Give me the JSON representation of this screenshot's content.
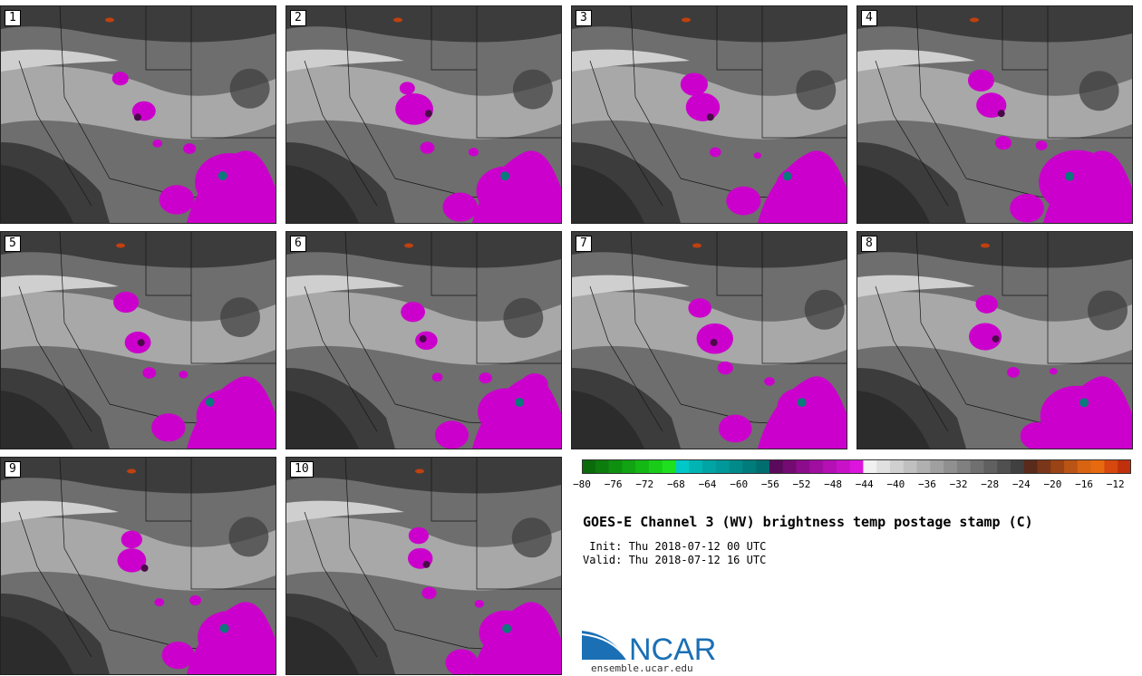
{
  "panels": [
    {
      "label": "1"
    },
    {
      "label": "2"
    },
    {
      "label": "3"
    },
    {
      "label": "4"
    },
    {
      "label": "5"
    },
    {
      "label": "6"
    },
    {
      "label": "7"
    },
    {
      "label": "8"
    },
    {
      "label": "9"
    },
    {
      "label": "10"
    }
  ],
  "colorbar": {
    "min": -80,
    "max": -10,
    "step": 2,
    "tick_labels": [
      "-80",
      "-76",
      "-72",
      "-68",
      "-64",
      "-60",
      "-56",
      "-52",
      "-48",
      "-44",
      "-40",
      "-36",
      "-32",
      "-28",
      "-24",
      "-20",
      "-16",
      "-12"
    ],
    "colors": [
      "#0a6b0a",
      "#0c7c0c",
      "#0f8f0f",
      "#11a311",
      "#14b814",
      "#18cc18",
      "#1ee01e",
      "#00c8c8",
      "#00b4b4",
      "#00a4a4",
      "#009898",
      "#008a8a",
      "#007c7c",
      "#006e6e",
      "#5a0a5a",
      "#730b73",
      "#8c0c8c",
      "#a00ea0",
      "#b410b4",
      "#c812c8",
      "#dc14dc",
      "#f0f0f0",
      "#e0e0e0",
      "#d0d0d0",
      "#c0c0c0",
      "#b0b0b0",
      "#a0a0a0",
      "#909090",
      "#808080",
      "#707070",
      "#606060",
      "#505050",
      "#404040",
      "#5a2a1a",
      "#7a3618",
      "#9a4416",
      "#ba5414",
      "#d86412",
      "#e86a10",
      "#d6480e",
      "#c0300c"
    ]
  },
  "title": "GOES-E Channel 3 (WV) brightness temp postage stamp (C)",
  "init_line": " Init: Thu 2018-07-12 00 UTC",
  "valid_line": "Valid: Thu 2018-07-12 16 UTC",
  "logo": {
    "text": "NCAR",
    "brand_color": "#1a6fb5"
  },
  "site": "ensemble.ucar.edu",
  "map_colors": {
    "dark": "#3c3c3c",
    "mid": "#6e6e6e",
    "light": "#a8a8a8",
    "pale": "#cfcfcf",
    "convection": "#cc00cc",
    "core": "#0a7a7a",
    "warm": "#c04010"
  }
}
